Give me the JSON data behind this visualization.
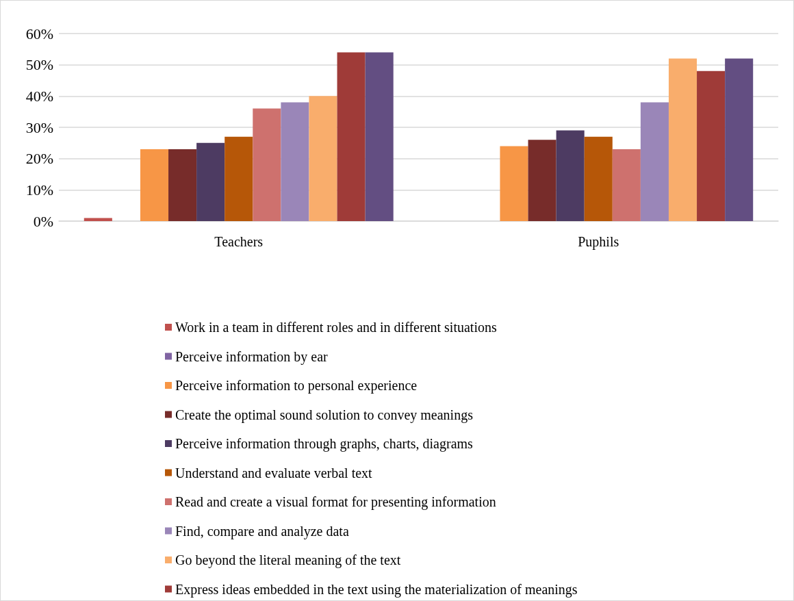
{
  "chart_data": {
    "type": "bar",
    "categories": [
      "Teachers",
      "Puphils"
    ],
    "series": [
      {
        "name": "Work in a team in different roles and in different situations",
        "color": "#c0504d",
        "values": [
          1,
          0
        ]
      },
      {
        "name": "Perceive information by ear",
        "color": "#8064a2",
        "values": [
          0,
          0
        ]
      },
      {
        "name": "Perceive information to personal experience",
        "color": "#f79646",
        "values": [
          23,
          24
        ]
      },
      {
        "name": "Create the optimal sound solution to convey meanings",
        "color": "#772c2a",
        "values": [
          23,
          26
        ]
      },
      {
        "name": "Perceive information through graphs, charts, diagrams",
        "color": "#4d3b62",
        "values": [
          25,
          29
        ]
      },
      {
        "name": "Understand and evaluate verbal text",
        "color": "#b65708",
        "values": [
          27,
          27
        ]
      },
      {
        "name": "Read and create a visual format for presenting information",
        "color": "#ce716e",
        "values": [
          36,
          23
        ]
      },
      {
        "name": "Find, compare and analyze data",
        "color": "#9a86b8",
        "values": [
          38,
          38
        ]
      },
      {
        "name": "Go beyond the literal meaning of the text",
        "color": "#f9ad6c",
        "values": [
          40,
          52
        ]
      },
      {
        "name": "Express ideas embedded in the text using the materialization of meanings",
        "color": "#9f3b38",
        "values": [
          54,
          48
        ]
      },
      {
        "color": "#634e82",
        "values": [
          54,
          52
        ]
      }
    ],
    "ylim": [
      0,
      60
    ],
    "yticks": [
      {
        "value": 0,
        "label": "0%"
      },
      {
        "value": 10,
        "label": "10%"
      },
      {
        "value": 20,
        "label": "20%"
      },
      {
        "value": 30,
        "label": "30%"
      },
      {
        "value": 40,
        "label": "40%"
      },
      {
        "value": 50,
        "label": "50%"
      },
      {
        "value": 60,
        "label": "60%"
      }
    ],
    "grid": "y",
    "legend": "bottom"
  }
}
